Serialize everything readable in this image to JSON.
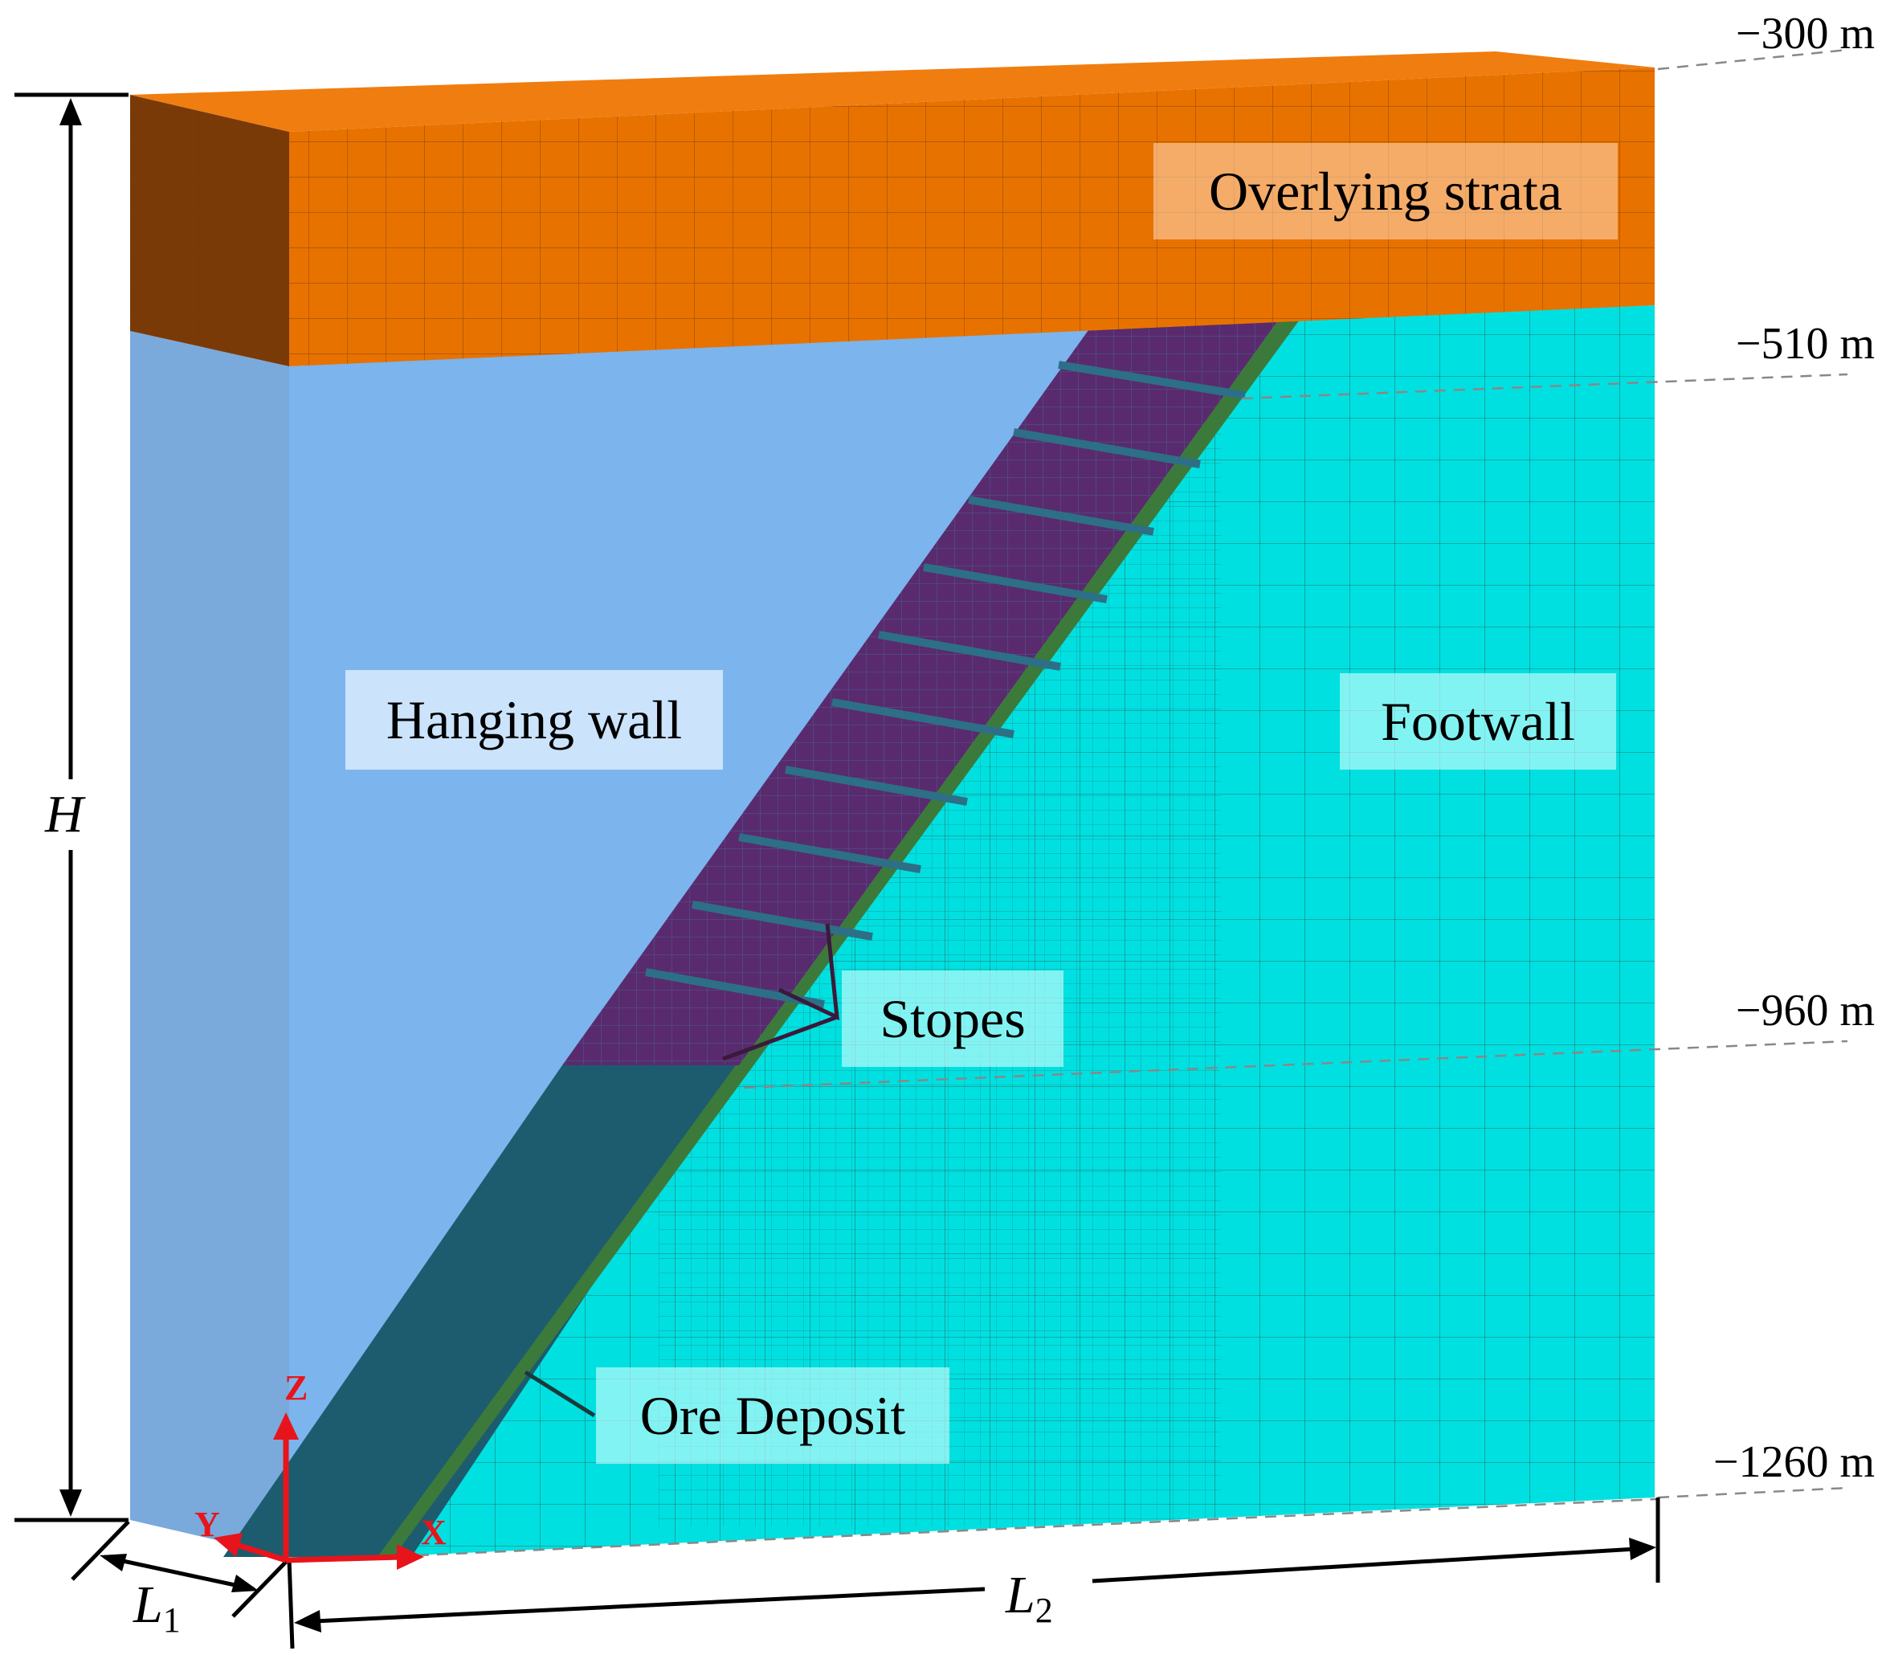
{
  "labels": {
    "overlying_strata": "Overlying strata",
    "hanging_wall": "Hanging wall",
    "footwall": "Footwall",
    "stopes": "Stopes",
    "ore_deposit": "Ore Deposit"
  },
  "elevations": {
    "top": "−300 m",
    "strata_base": "−510 m",
    "mid": "−960 m",
    "bottom": "−1260 m"
  },
  "dimensions": {
    "height": "H",
    "l1_symbol": "L",
    "l1_sub": "1",
    "l2_symbol": "L",
    "l2_sub": "2"
  },
  "axes": {
    "z": "Z",
    "y": "Y",
    "x": "X"
  },
  "colors": {
    "strata": "#e87200",
    "strata_side": "#7a3a08",
    "hanging_wall": "#7cb4ee",
    "hanging_wall_side": "#78a8dc",
    "footwall": "#00e0e0",
    "ore": "#1d5b6e",
    "stopes": "#5a2a6e",
    "axes": "#e8141c"
  }
}
